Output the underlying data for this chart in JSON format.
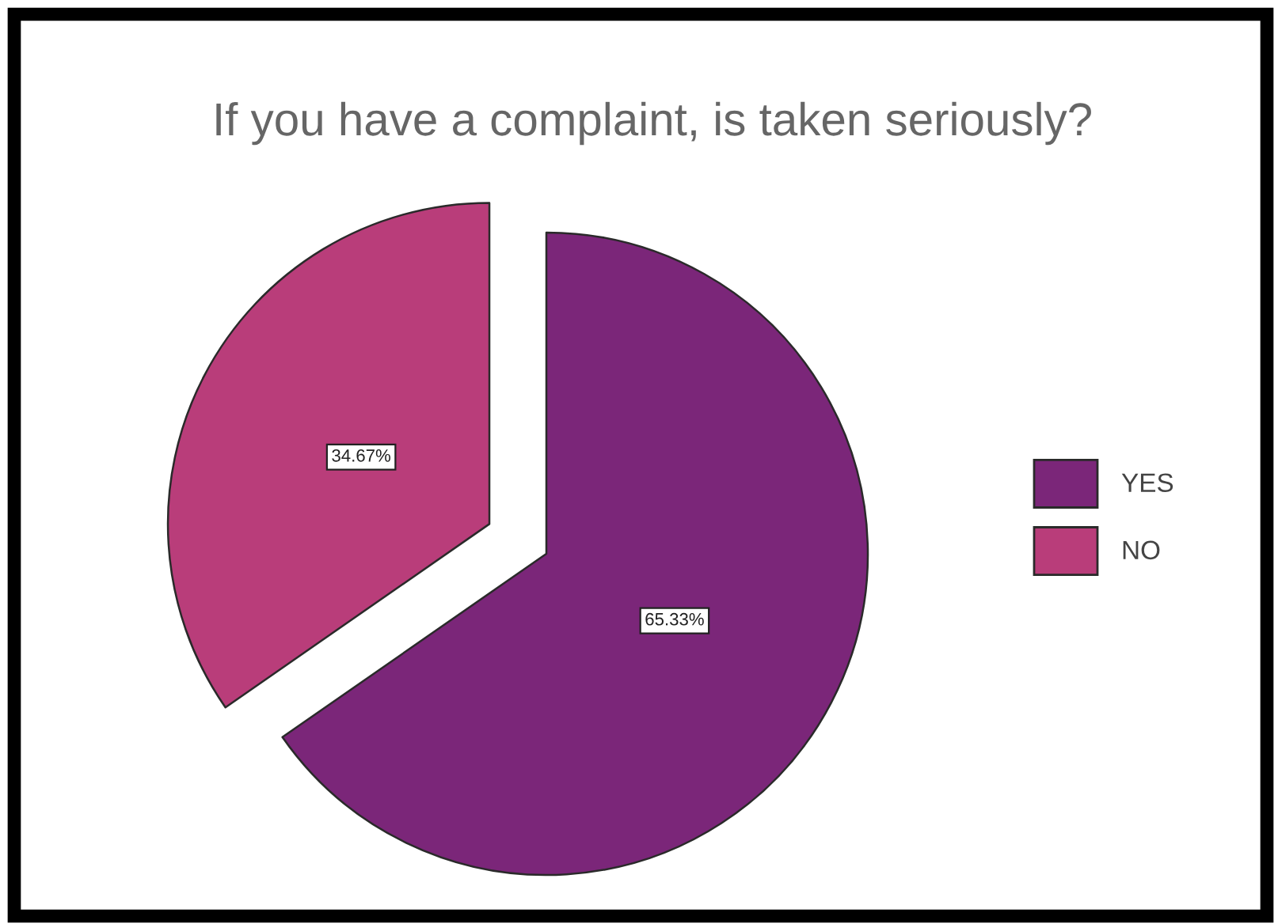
{
  "chart_data": {
    "type": "pie",
    "title": "If you have a complaint, is taken seriously?",
    "categories": [
      "YES",
      "NO"
    ],
    "values": [
      65.33,
      34.67
    ],
    "colors": [
      "#7b2679",
      "#b93d7a"
    ],
    "value_labels": [
      "65.33%",
      "34.67%"
    ],
    "legend": "right"
  }
}
